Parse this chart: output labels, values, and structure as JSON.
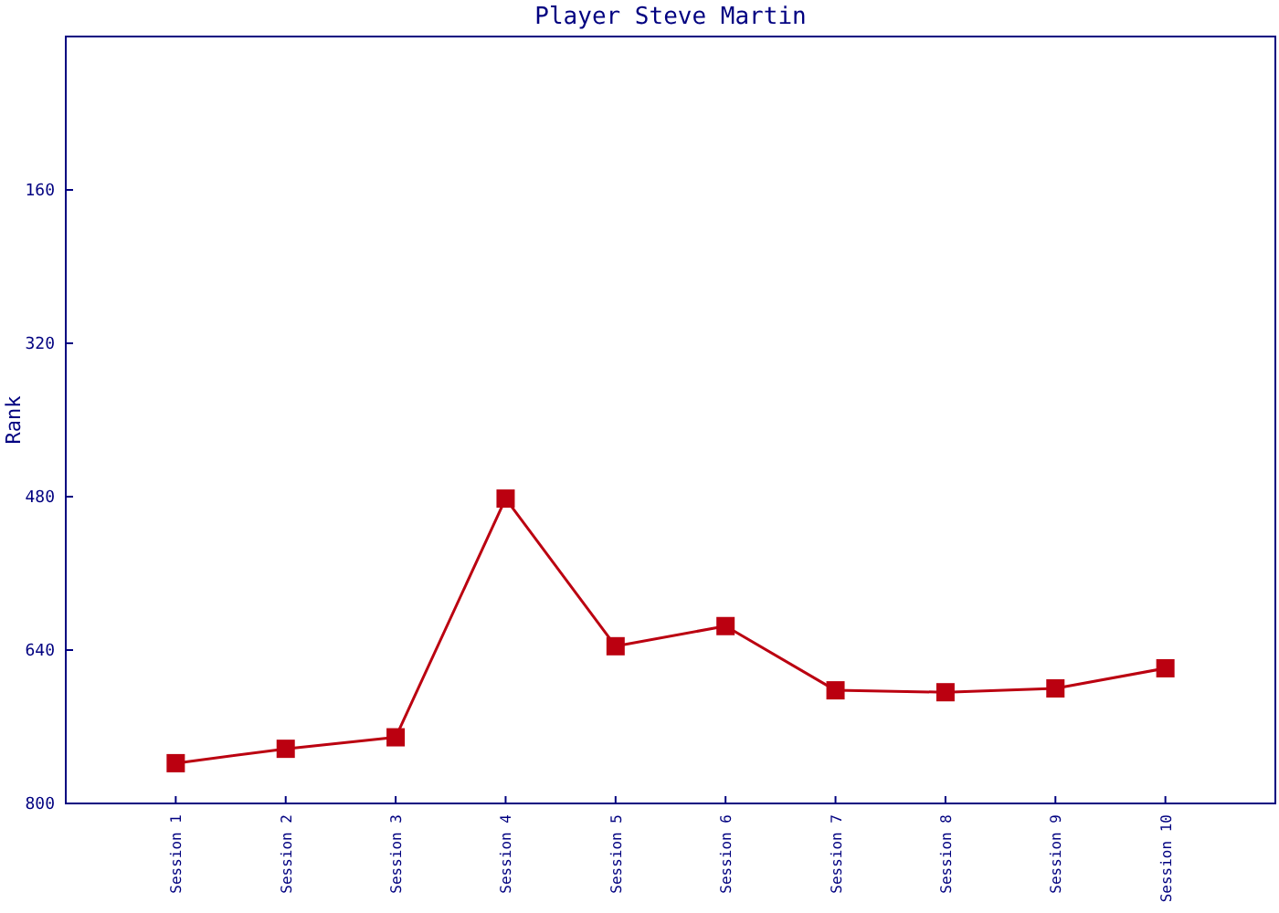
{
  "chart_data": {
    "type": "line",
    "title": "Player Steve Martin",
    "ylabel": "Rank",
    "categories": [
      "Session 1",
      "Session 2",
      "Session 3",
      "Session 4",
      "Session 5",
      "Session 6",
      "Session 7",
      "Session 8",
      "Session 9",
      "Session 10"
    ],
    "series": [
      {
        "color": "#bb0010",
        "values": [
          758,
          743,
          731,
          482,
          636,
          615,
          682,
          684,
          680,
          659
        ]
      }
    ],
    "ylim": [
      800,
      0
    ],
    "yticks": [
      160,
      320,
      480,
      640,
      800
    ],
    "marker": "square",
    "grid": false
  }
}
